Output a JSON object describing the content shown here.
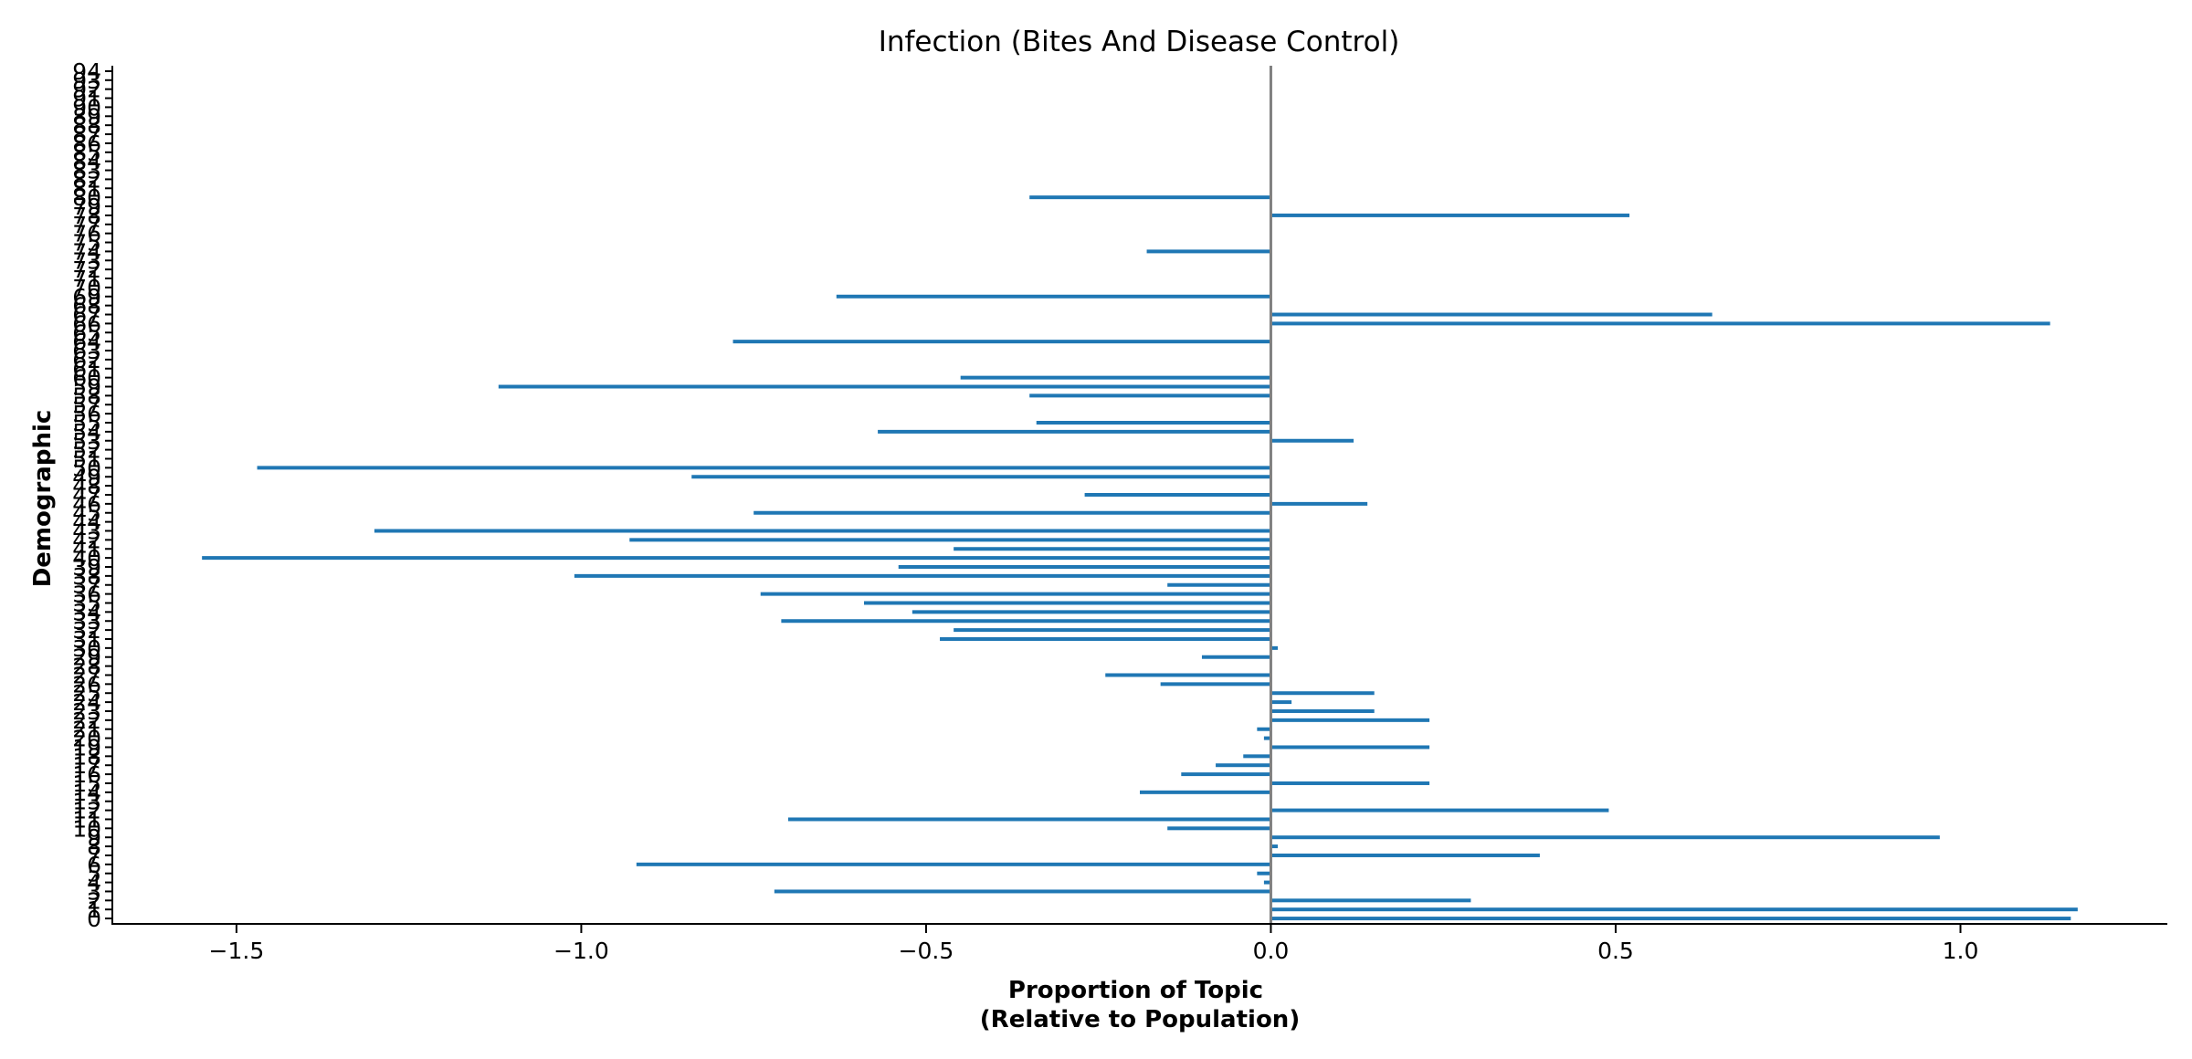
{
  "chart_data": {
    "type": "bar",
    "orientation": "horizontal",
    "title": "Infection (Bites And Disease Control)",
    "xlabel": "Proportion of Topic\n(Relative to Population)",
    "ylabel": "Demographic",
    "xlim": [
      -1.68,
      1.3
    ],
    "ylim": [
      -0.6,
      94.6
    ],
    "xticks": [
      -1.5,
      -1.0,
      -0.5,
      0.0,
      0.5,
      1.0
    ],
    "xtick_labels": [
      "−1.5",
      "−1.0",
      "−0.5",
      "0.0",
      "0.5",
      "1.0"
    ],
    "categories": [
      0,
      1,
      2,
      3,
      4,
      5,
      6,
      7,
      8,
      9,
      10,
      11,
      12,
      13,
      14,
      15,
      16,
      17,
      18,
      19,
      20,
      21,
      22,
      23,
      24,
      25,
      26,
      27,
      28,
      29,
      30,
      31,
      32,
      33,
      34,
      35,
      36,
      37,
      38,
      39,
      40,
      41,
      42,
      43,
      44,
      45,
      46,
      47,
      48,
      49,
      50,
      51,
      52,
      53,
      54,
      55,
      56,
      57,
      58,
      59,
      60,
      61,
      62,
      63,
      64,
      65,
      66,
      67,
      68,
      69,
      70,
      71,
      72,
      73,
      74,
      75,
      76,
      77,
      78,
      79,
      80,
      81,
      82,
      83,
      84,
      85,
      86,
      87,
      88,
      89,
      90,
      91,
      92,
      93,
      94
    ],
    "values": [
      1.16,
      1.17,
      0.29,
      -0.72,
      -0.01,
      -0.02,
      -0.92,
      0.39,
      0.01,
      0.97,
      -0.15,
      -0.7,
      0.49,
      0,
      -0.19,
      0.23,
      -0.13,
      -0.08,
      -0.04,
      0.23,
      -0.01,
      -0.02,
      0.23,
      0.15,
      0.03,
      0.15,
      -0.16,
      -0.24,
      0,
      -0.1,
      0.01,
      -0.48,
      -0.46,
      -0.71,
      -0.52,
      -0.59,
      -0.74,
      -0.15,
      -1.01,
      -0.54,
      -1.55,
      -0.46,
      -0.93,
      -1.3,
      0,
      -0.75,
      0.14,
      -0.27,
      0,
      -0.84,
      -1.47,
      0,
      0,
      0.12,
      -0.57,
      -0.34,
      0,
      0,
      -0.35,
      -1.12,
      -0.45,
      0,
      0,
      0,
      -0.78,
      0,
      1.13,
      0.64,
      0,
      -0.63,
      0,
      0,
      0,
      0,
      -0.18,
      0,
      0,
      0,
      0.52,
      0,
      -0.35,
      0,
      0,
      0,
      0,
      0,
      0,
      0,
      0,
      0,
      0,
      0,
      0,
      0,
      0
    ],
    "bar_color": "#1f77b4",
    "zero_line_color": "#808080",
    "grid": false,
    "legend": "none"
  }
}
